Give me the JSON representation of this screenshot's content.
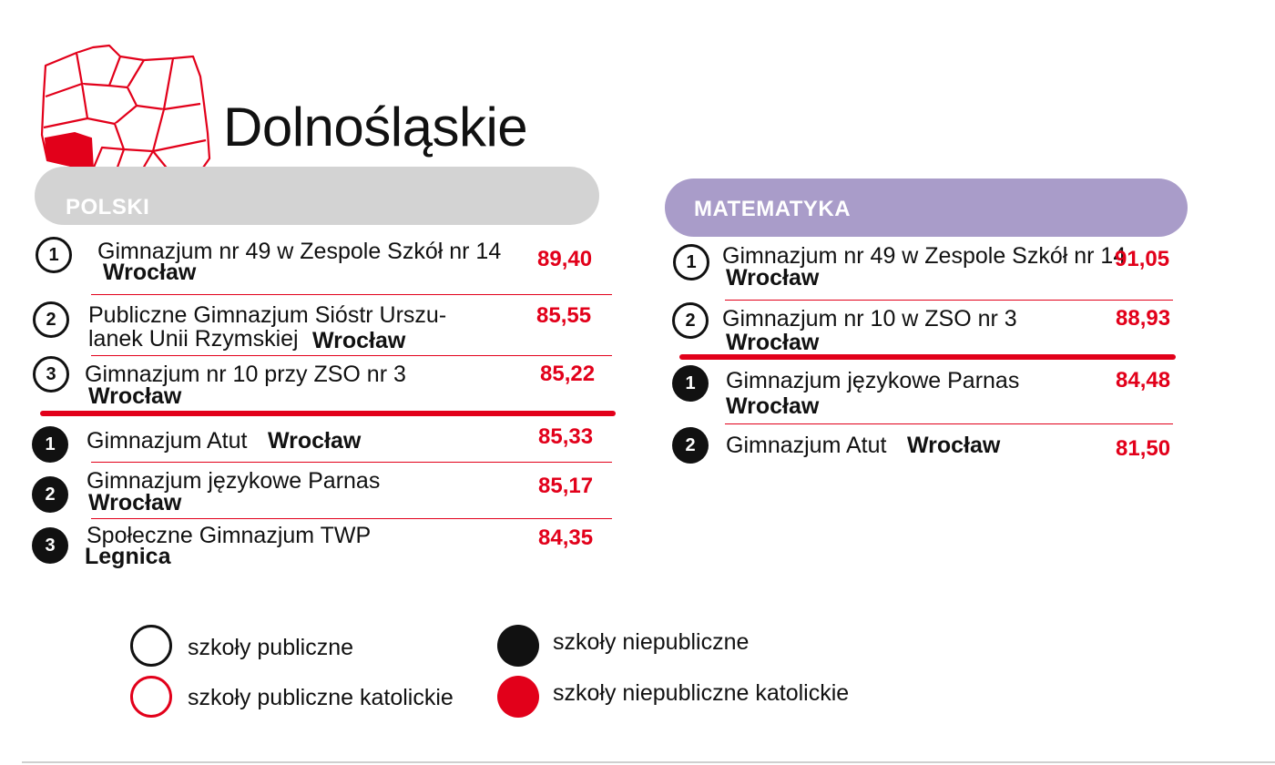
{
  "header": {
    "title": "Dolnośląskie"
  },
  "colors": {
    "accent": "#e2001a",
    "polski_pill": "#d3d3d3",
    "matematyka_pill": "#a99cc9"
  },
  "map": {
    "icon": "poland-map-icon",
    "highlight_region": "dolnoslaskie"
  },
  "polski": {
    "label": "POLSKI",
    "public": [
      {
        "rank": "1",
        "name": "Gimnazjum nr 49 w Zespole Szkół nr 14",
        "city": "Wrocław",
        "score": "89,40"
      },
      {
        "rank": "2",
        "name_line1": "Publiczne Gimnazjum Sióstr Urszu-",
        "name_line2": "lanek Unii Rzymskiej",
        "city": "Wrocław",
        "score": "85,55"
      },
      {
        "rank": "3",
        "name": "Gimnazjum nr 10 przy ZSO nr 3",
        "city": "Wrocław",
        "score": "85,22"
      }
    ],
    "nonpublic": [
      {
        "rank": "1",
        "name": "Gimnazjum Atut",
        "city": "Wrocław",
        "score": "85,33"
      },
      {
        "rank": "2",
        "name": "Gimnazjum językowe Parnas",
        "city": "Wrocław",
        "score": "85,17"
      },
      {
        "rank": "3",
        "name": "Społeczne Gimnazjum TWP",
        "city": "Legnica",
        "score": "84,35"
      }
    ]
  },
  "matematyka": {
    "label": "MATEMATYKA",
    "public": [
      {
        "rank": "1",
        "name": "Gimnazjum nr 49 w Zespole Szkół nr 14",
        "city": "Wrocław",
        "score": "91,05"
      },
      {
        "rank": "2",
        "name": "Gimnazjum nr 10 w ZSO nr 3",
        "city": "Wrocław",
        "score": "88,93"
      }
    ],
    "nonpublic": [
      {
        "rank": "1",
        "name": "Gimnazjum językowe Parnas",
        "city": "Wrocław",
        "score": "84,48"
      },
      {
        "rank": "2",
        "name": "Gimnazjum Atut",
        "city": "Wrocław",
        "score": "81,50"
      }
    ]
  },
  "legend": {
    "public": "szkoły publiczne",
    "public_catholic": "szkoły publiczne katolickie",
    "nonpublic": "szkoły niepubliczne",
    "nonpublic_catholic": "szkoły niepubliczne katolickie"
  }
}
